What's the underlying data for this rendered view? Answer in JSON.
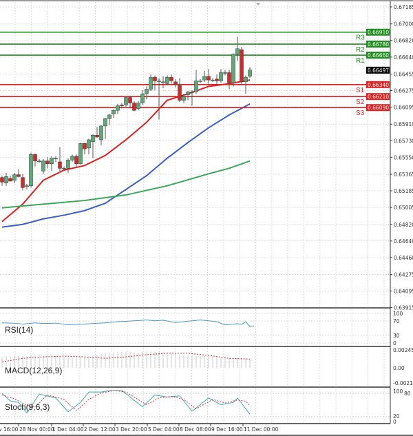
{
  "chart_data": [
    {
      "type": "candlestick",
      "ylim": [
        0.63915,
        0.67185
      ],
      "y_ticks": [
        "0.67185",
        "0.67000",
        "0.66820",
        "0.66640",
        "0.66455",
        "0.66275",
        "0.66095",
        "0.65910",
        "0.65730",
        "0.65550",
        "0.65365",
        "0.65185",
        "0.65005",
        "0.64820",
        "0.64640",
        "0.64460",
        "0.64275",
        "0.64095",
        "0.63915"
      ],
      "x_tick_labels": [
        "v 16:00",
        "28 Nov 00:00",
        "1 Dec 04:00",
        "2 Dec 12:00",
        "3 Dec 20:00",
        "5 Dec 04:00",
        "8 Dec 08:00",
        "9 Dec 16:00",
        "11 Dec 00:00"
      ],
      "grid": true,
      "candles": [
        [
          0.6533,
          0.6535,
          0.6524,
          0.6528
        ],
        [
          0.6527,
          0.6538,
          0.6524,
          0.6534
        ],
        [
          0.6532,
          0.6535,
          0.6529,
          0.6529
        ],
        [
          0.653,
          0.6538,
          0.6527,
          0.6536
        ],
        [
          0.6536,
          0.6542,
          0.6533,
          0.6534
        ],
        [
          0.6533,
          0.6537,
          0.6519,
          0.6522
        ],
        [
          0.6524,
          0.6526,
          0.652,
          0.6524
        ],
        [
          0.6524,
          0.656,
          0.6522,
          0.6558
        ],
        [
          0.6558,
          0.6559,
          0.6545,
          0.6551
        ],
        [
          0.6551,
          0.6553,
          0.6549,
          0.6551
        ],
        [
          0.654,
          0.6553,
          0.6537,
          0.6551
        ],
        [
          0.6551,
          0.6555,
          0.6543,
          0.6548
        ],
        [
          0.6548,
          0.6556,
          0.654,
          0.6554
        ],
        [
          0.6554,
          0.6556,
          0.655,
          0.6554
        ],
        [
          0.655,
          0.6566,
          0.654,
          0.6543
        ],
        [
          0.6543,
          0.6545,
          0.6541,
          0.6543
        ],
        [
          0.6543,
          0.6554,
          0.6538,
          0.6552
        ],
        [
          0.6552,
          0.6558,
          0.655,
          0.6556
        ],
        [
          0.6556,
          0.6558,
          0.6544,
          0.6548
        ],
        [
          0.6548,
          0.6571,
          0.6547,
          0.657
        ],
        [
          0.657,
          0.6571,
          0.6558,
          0.6564
        ],
        [
          0.6565,
          0.6575,
          0.6558,
          0.6574
        ],
        [
          0.6572,
          0.658,
          0.6554,
          0.6579
        ],
        [
          0.6579,
          0.6588,
          0.6576,
          0.6577
        ],
        [
          0.6574,
          0.659,
          0.6568,
          0.6589
        ],
        [
          0.6589,
          0.6598,
          0.6575,
          0.6597
        ],
        [
          0.6597,
          0.6602,
          0.659,
          0.6601
        ],
        [
          0.6602,
          0.6607,
          0.6598,
          0.6606
        ],
        [
          0.6606,
          0.6613,
          0.6602,
          0.6611
        ],
        [
          0.6612,
          0.6614,
          0.6608,
          0.6611
        ],
        [
          0.6612,
          0.6621,
          0.661,
          0.662
        ],
        [
          0.662,
          0.6622,
          0.6608,
          0.6614
        ],
        [
          0.6614,
          0.6616,
          0.6605,
          0.6606
        ],
        [
          0.6608,
          0.6616,
          0.6606,
          0.6614
        ],
        [
          0.6614,
          0.6628,
          0.6612,
          0.6624
        ],
        [
          0.6624,
          0.6632,
          0.6618,
          0.6629
        ],
        [
          0.6629,
          0.6645,
          0.6627,
          0.6642
        ],
        [
          0.6642,
          0.6644,
          0.6628,
          0.6638
        ],
        [
          0.6638,
          0.6641,
          0.6596,
          0.6638
        ],
        [
          0.6637,
          0.6643,
          0.663,
          0.6637
        ],
        [
          0.6635,
          0.6644,
          0.6633,
          0.6642
        ],
        [
          0.6642,
          0.6645,
          0.6635,
          0.6638
        ],
        [
          0.6637,
          0.664,
          0.6631,
          0.6634
        ],
        [
          0.6633,
          0.6641,
          0.6615,
          0.6617
        ],
        [
          0.6617,
          0.6624,
          0.6614,
          0.6621
        ],
        [
          0.6623,
          0.6627,
          0.6617,
          0.6626
        ],
        [
          0.6626,
          0.6628,
          0.6611,
          0.6626
        ],
        [
          0.6626,
          0.665,
          0.6624,
          0.6638
        ],
        [
          0.6638,
          0.664,
          0.6636,
          0.6638
        ],
        [
          0.6639,
          0.6649,
          0.6637,
          0.6643
        ],
        [
          0.6643,
          0.6651,
          0.6635,
          0.6639
        ],
        [
          0.6639,
          0.6641,
          0.6637,
          0.6639
        ],
        [
          0.664,
          0.6645,
          0.6634,
          0.6638
        ],
        [
          0.6638,
          0.6651,
          0.6636,
          0.6647
        ],
        [
          0.6647,
          0.665,
          0.6644,
          0.6647
        ],
        [
          0.6647,
          0.665,
          0.6629,
          0.6636
        ],
        [
          0.6636,
          0.6668,
          0.6632,
          0.6667
        ],
        [
          0.6667,
          0.6686,
          0.666,
          0.6673
        ],
        [
          0.6672,
          0.6675,
          0.6633,
          0.6637
        ],
        [
          0.6637,
          0.6644,
          0.6624,
          0.6642
        ],
        [
          0.6643,
          0.6653,
          0.6641,
          0.665
        ]
      ],
      "moving_averages": [
        {
          "color": "#e02020",
          "points": [
            [
              0,
              0.6485
            ],
            [
              5,
              0.6504
            ],
            [
              10,
              0.653
            ],
            [
              15,
              0.6541
            ],
            [
              20,
              0.6546
            ],
            [
              25,
              0.6557
            ],
            [
              30,
              0.6574
            ],
            [
              35,
              0.6593
            ],
            [
              40,
              0.6617
            ],
            [
              45,
              0.6624
            ],
            [
              50,
              0.6632
            ],
            [
              55,
              0.6635
            ],
            [
              60,
              0.6639
            ]
          ]
        },
        {
          "color": "#3a5fc8",
          "points": [
            [
              0,
              0.6479
            ],
            [
              5,
              0.6482
            ],
            [
              10,
              0.6488
            ],
            [
              15,
              0.6492
            ],
            [
              20,
              0.6497
            ],
            [
              25,
              0.6505
            ],
            [
              30,
              0.652
            ],
            [
              35,
              0.6535
            ],
            [
              40,
              0.6554
            ],
            [
              45,
              0.6571
            ],
            [
              50,
              0.6587
            ],
            [
              55,
              0.6601
            ],
            [
              60,
              0.6613
            ]
          ]
        },
        {
          "color": "#3aa85a",
          "points": [
            [
              0,
              0.65
            ],
            [
              10,
              0.6504
            ],
            [
              20,
              0.6508
            ],
            [
              30,
              0.6514
            ],
            [
              40,
              0.6524
            ],
            [
              50,
              0.6537
            ],
            [
              55,
              0.6543
            ],
            [
              60,
              0.6551
            ]
          ]
        }
      ],
      "levels": [
        {
          "label": "R3",
          "value": "0.66910",
          "color": "#1e8c1e"
        },
        {
          "label": "R2",
          "value": "0.66780",
          "color": "#1e8c1e"
        },
        {
          "label": "R1",
          "value": "0.66660",
          "color": "#1e8c1e"
        },
        {
          "label": "S1",
          "value": "0.66340",
          "color": "#e02020"
        },
        {
          "label": "S2",
          "value": "0.66210",
          "color": "#e02020"
        },
        {
          "label": "S3",
          "value": "0.66090",
          "color": "#e02020"
        }
      ],
      "current_price": "0.66497",
      "colors": {
        "bull": "#5fa877",
        "bear": "#d12a2a"
      }
    },
    {
      "type": "line",
      "title": "RSI(14)",
      "ylim": [
        0,
        100
      ],
      "y_ticks": [
        "100",
        "70",
        "30",
        "0"
      ],
      "color": "#4a9ac8",
      "points": [
        [
          0,
          68
        ],
        [
          3,
          67
        ],
        [
          5,
          64
        ],
        [
          8,
          68
        ],
        [
          10,
          66
        ],
        [
          13,
          67
        ],
        [
          16,
          62
        ],
        [
          19,
          63
        ],
        [
          22,
          66
        ],
        [
          25,
          68
        ],
        [
          28,
          72
        ],
        [
          31,
          74
        ],
        [
          33,
          76
        ],
        [
          35,
          78
        ],
        [
          37,
          75
        ],
        [
          39,
          77
        ],
        [
          42,
          69
        ],
        [
          44,
          72
        ],
        [
          46,
          75
        ],
        [
          48,
          78
        ],
        [
          50,
          75
        ],
        [
          52,
          72
        ],
        [
          54,
          61
        ],
        [
          56,
          64
        ],
        [
          57,
          65
        ],
        [
          58,
          63
        ],
        [
          59,
          72
        ],
        [
          60,
          56
        ],
        [
          61,
          58
        ]
      ]
    },
    {
      "type": "bar",
      "title": "MACD(12,26,9)",
      "ylim": [
        -0.002146,
        0.002457
      ],
      "y_ticks": [
        "0.002457",
        "0.00",
        "-0.002146"
      ],
      "histogram": [
        0.0015,
        0.0016,
        0.0016,
        0.0017,
        0.0017,
        0.0016,
        0.0015,
        0.0017,
        0.0017,
        0.0017,
        0.0017,
        0.0016,
        0.0016,
        0.0016,
        0.0015,
        0.0014,
        0.0014,
        0.0014,
        0.0014,
        0.0015,
        0.0015,
        0.0016,
        0.0017,
        0.0018,
        0.0019,
        0.002,
        0.0021,
        0.0021,
        0.0022,
        0.0022,
        0.0022,
        0.0022,
        0.0021,
        0.0021,
        0.0022,
        0.0022,
        0.0022,
        0.0022,
        0.0022,
        0.0022,
        0.0021,
        0.0021,
        0.002,
        0.0018,
        0.0017,
        0.0017,
        0.0016,
        0.0016,
        0.0016,
        0.0016,
        0.0016,
        0.0015,
        0.0015,
        0.0014,
        0.0014,
        0.0013,
        0.0013,
        0.0014,
        0.0013,
        0.0013,
        0.0013
      ],
      "signal": [
        [
          0,
          0.0008
        ],
        [
          5,
          0.0013
        ],
        [
          10,
          0.0015
        ],
        [
          15,
          0.0016
        ],
        [
          20,
          0.0015
        ],
        [
          25,
          0.0013
        ],
        [
          30,
          0.0015
        ],
        [
          35,
          0.0018
        ],
        [
          40,
          0.002
        ],
        [
          45,
          0.002
        ],
        [
          50,
          0.0017
        ],
        [
          55,
          0.0013
        ],
        [
          60,
          0.0012
        ]
      ]
    },
    {
      "type": "line",
      "title": "Stoch(9,6,3)",
      "ylim": [
        0,
        100
      ],
      "y_ticks": [
        "100",
        "80",
        "20",
        "0"
      ],
      "main": [
        [
          0,
          90
        ],
        [
          2,
          65
        ],
        [
          4,
          60
        ],
        [
          6,
          24
        ],
        [
          9,
          88
        ],
        [
          13,
          75
        ],
        [
          16,
          28
        ],
        [
          19,
          60
        ],
        [
          21,
          95
        ],
        [
          24,
          95
        ],
        [
          26,
          100
        ],
        [
          29,
          100
        ],
        [
          34,
          45
        ],
        [
          37,
          85
        ],
        [
          40,
          78
        ],
        [
          43,
          82
        ],
        [
          46,
          30
        ],
        [
          50,
          75
        ],
        [
          53,
          52
        ],
        [
          56,
          60
        ],
        [
          57,
          75
        ],
        [
          60,
          20
        ]
      ],
      "signal": [
        [
          0,
          85
        ],
        [
          3,
          72
        ],
        [
          6,
          50
        ],
        [
          8,
          45
        ],
        [
          11,
          85
        ],
        [
          15,
          70
        ],
        [
          18,
          32
        ],
        [
          21,
          70
        ],
        [
          24,
          92
        ],
        [
          27,
          100
        ],
        [
          30,
          95
        ],
        [
          35,
          52
        ],
        [
          38,
          75
        ],
        [
          41,
          80
        ],
        [
          44,
          70
        ],
        [
          47,
          38
        ],
        [
          51,
          70
        ],
        [
          54,
          58
        ],
        [
          57,
          68
        ],
        [
          59,
          64
        ],
        [
          60,
          50
        ]
      ]
    }
  ]
}
